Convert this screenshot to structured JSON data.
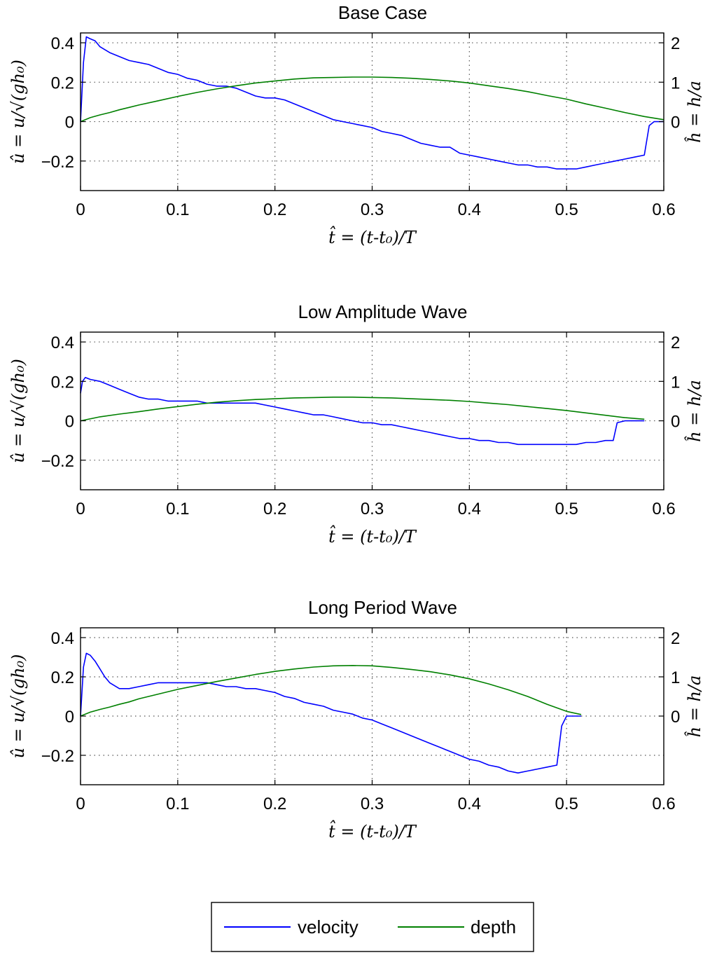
{
  "chart_data": [
    {
      "type": "line",
      "title": "Base Case",
      "xlabel": "t̂ = (t-t₀)/T",
      "ylabel": "û = u/√(gh₀)",
      "y2label": "ĥ = h/a",
      "xlim": [
        0,
        0.6
      ],
      "ylim": [
        -0.35,
        0.45
      ],
      "y2lim": [
        -1.75,
        2.25
      ],
      "xticks": [
        "0",
        "0.1",
        "0.2",
        "0.3",
        "0.4",
        "0.5",
        "0.6"
      ],
      "yticks": [
        "0.4",
        "0.2",
        "0",
        "−0.2"
      ],
      "y2ticks": [
        "2",
        "1",
        "0"
      ],
      "grid": true,
      "series": [
        {
          "name": "velocity",
          "axis": "left",
          "x": [
            0,
            0.003,
            0.006,
            0.01,
            0.015,
            0.02,
            0.03,
            0.04,
            0.05,
            0.06,
            0.07,
            0.08,
            0.09,
            0.1,
            0.11,
            0.12,
            0.13,
            0.14,
            0.15,
            0.16,
            0.17,
            0.18,
            0.19,
            0.2,
            0.21,
            0.22,
            0.23,
            0.24,
            0.25,
            0.26,
            0.27,
            0.28,
            0.29,
            0.3,
            0.31,
            0.32,
            0.33,
            0.34,
            0.35,
            0.36,
            0.37,
            0.38,
            0.39,
            0.4,
            0.41,
            0.42,
            0.43,
            0.44,
            0.45,
            0.46,
            0.47,
            0.48,
            0.49,
            0.5,
            0.51,
            0.52,
            0.53,
            0.54,
            0.55,
            0.56,
            0.57,
            0.58,
            0.585,
            0.59,
            0.6
          ],
          "y": [
            0,
            0.3,
            0.43,
            0.42,
            0.41,
            0.38,
            0.35,
            0.33,
            0.31,
            0.3,
            0.29,
            0.27,
            0.25,
            0.24,
            0.22,
            0.21,
            0.19,
            0.18,
            0.18,
            0.17,
            0.15,
            0.13,
            0.12,
            0.12,
            0.11,
            0.09,
            0.07,
            0.05,
            0.03,
            0.01,
            0.0,
            -0.01,
            -0.02,
            -0.03,
            -0.05,
            -0.06,
            -0.07,
            -0.09,
            -0.11,
            -0.12,
            -0.13,
            -0.13,
            -0.16,
            -0.17,
            -0.18,
            -0.19,
            -0.2,
            -0.21,
            -0.22,
            -0.22,
            -0.23,
            -0.23,
            -0.24,
            -0.24,
            -0.24,
            -0.23,
            -0.22,
            -0.21,
            -0.2,
            -0.19,
            -0.18,
            -0.17,
            -0.02,
            0,
            0
          ]
        },
        {
          "name": "depth",
          "axis": "right",
          "x": [
            0,
            0.01,
            0.02,
            0.03,
            0.04,
            0.05,
            0.06,
            0.08,
            0.1,
            0.12,
            0.14,
            0.16,
            0.18,
            0.2,
            0.22,
            0.24,
            0.26,
            0.28,
            0.3,
            0.32,
            0.34,
            0.36,
            0.38,
            0.4,
            0.42,
            0.44,
            0.46,
            0.48,
            0.5,
            0.52,
            0.54,
            0.56,
            0.58,
            0.6
          ],
          "y": [
            0,
            0.1,
            0.17,
            0.23,
            0.3,
            0.36,
            0.42,
            0.53,
            0.64,
            0.74,
            0.83,
            0.91,
            0.98,
            1.03,
            1.08,
            1.11,
            1.12,
            1.13,
            1.13,
            1.12,
            1.1,
            1.07,
            1.03,
            0.98,
            0.91,
            0.84,
            0.76,
            0.66,
            0.57,
            0.45,
            0.34,
            0.23,
            0.13,
            0.05
          ]
        }
      ]
    },
    {
      "type": "line",
      "title": "Low Amplitude Wave",
      "xlabel": "t̂ = (t-t₀)/T",
      "ylabel": "û = u/√(gh₀)",
      "y2label": "ĥ = h/a",
      "xlim": [
        0,
        0.6
      ],
      "ylim": [
        -0.35,
        0.45
      ],
      "y2lim": [
        -1.75,
        2.25
      ],
      "xticks": [
        "0",
        "0.1",
        "0.2",
        "0.3",
        "0.4",
        "0.5",
        "0.6"
      ],
      "yticks": [
        "0.4",
        "0.2",
        "0",
        "−0.2"
      ],
      "y2ticks": [
        "2",
        "1",
        "0"
      ],
      "grid": true,
      "series": [
        {
          "name": "velocity",
          "axis": "left",
          "x": [
            0,
            0.002,
            0.005,
            0.01,
            0.02,
            0.03,
            0.04,
            0.05,
            0.06,
            0.07,
            0.08,
            0.09,
            0.1,
            0.11,
            0.12,
            0.13,
            0.14,
            0.15,
            0.16,
            0.17,
            0.18,
            0.19,
            0.2,
            0.21,
            0.22,
            0.23,
            0.24,
            0.25,
            0.26,
            0.27,
            0.28,
            0.29,
            0.3,
            0.31,
            0.32,
            0.33,
            0.34,
            0.35,
            0.36,
            0.37,
            0.38,
            0.39,
            0.4,
            0.41,
            0.42,
            0.43,
            0.44,
            0.45,
            0.46,
            0.47,
            0.48,
            0.49,
            0.5,
            0.51,
            0.52,
            0.53,
            0.54,
            0.548,
            0.552,
            0.56,
            0.57,
            0.58
          ],
          "y": [
            0.14,
            0.2,
            0.22,
            0.21,
            0.2,
            0.18,
            0.16,
            0.14,
            0.12,
            0.11,
            0.11,
            0.1,
            0.1,
            0.1,
            0.1,
            0.09,
            0.09,
            0.09,
            0.09,
            0.09,
            0.09,
            0.08,
            0.07,
            0.06,
            0.05,
            0.04,
            0.03,
            0.03,
            0.02,
            0.01,
            0.0,
            -0.01,
            -0.01,
            -0.02,
            -0.02,
            -0.03,
            -0.04,
            -0.05,
            -0.06,
            -0.07,
            -0.08,
            -0.09,
            -0.09,
            -0.1,
            -0.1,
            -0.11,
            -0.11,
            -0.12,
            -0.12,
            -0.12,
            -0.12,
            -0.12,
            -0.12,
            -0.12,
            -0.11,
            -0.11,
            -0.1,
            -0.1,
            -0.01,
            0,
            0,
            0
          ]
        },
        {
          "name": "depth",
          "axis": "right",
          "x": [
            0,
            0.02,
            0.04,
            0.06,
            0.08,
            0.1,
            0.12,
            0.14,
            0.16,
            0.18,
            0.2,
            0.22,
            0.24,
            0.26,
            0.28,
            0.3,
            0.32,
            0.34,
            0.36,
            0.38,
            0.4,
            0.42,
            0.44,
            0.46,
            0.48,
            0.5,
            0.52,
            0.54,
            0.56,
            0.58
          ],
          "y": [
            0,
            0.1,
            0.17,
            0.23,
            0.3,
            0.36,
            0.42,
            0.47,
            0.51,
            0.54,
            0.56,
            0.58,
            0.59,
            0.6,
            0.6,
            0.59,
            0.58,
            0.56,
            0.54,
            0.52,
            0.49,
            0.45,
            0.41,
            0.36,
            0.31,
            0.26,
            0.2,
            0.14,
            0.08,
            0.04
          ]
        }
      ]
    },
    {
      "type": "line",
      "title": "Long Period Wave",
      "xlabel": "t̂ = (t-t₀)/T",
      "ylabel": "û = u/√(gh₀)",
      "y2label": "ĥ = h/a",
      "xlim": [
        0,
        0.6
      ],
      "ylim": [
        -0.35,
        0.45
      ],
      "y2lim": [
        -1.75,
        2.25
      ],
      "xticks": [
        "0",
        "0.1",
        "0.2",
        "0.3",
        "0.4",
        "0.5",
        "0.6"
      ],
      "yticks": [
        "0.4",
        "0.2",
        "0",
        "−0.2"
      ],
      "y2ticks": [
        "2",
        "1",
        "0"
      ],
      "grid": true,
      "series": [
        {
          "name": "velocity",
          "axis": "left",
          "x": [
            0,
            0.003,
            0.006,
            0.01,
            0.015,
            0.02,
            0.025,
            0.03,
            0.04,
            0.05,
            0.06,
            0.07,
            0.08,
            0.09,
            0.1,
            0.11,
            0.12,
            0.13,
            0.14,
            0.15,
            0.16,
            0.17,
            0.18,
            0.19,
            0.2,
            0.21,
            0.22,
            0.23,
            0.24,
            0.25,
            0.26,
            0.27,
            0.28,
            0.29,
            0.3,
            0.31,
            0.32,
            0.33,
            0.34,
            0.35,
            0.36,
            0.37,
            0.38,
            0.39,
            0.4,
            0.41,
            0.42,
            0.43,
            0.44,
            0.45,
            0.46,
            0.47,
            0.48,
            0.49,
            0.495,
            0.5,
            0.505,
            0.51,
            0.515
          ],
          "y": [
            0,
            0.25,
            0.32,
            0.31,
            0.28,
            0.24,
            0.2,
            0.17,
            0.14,
            0.14,
            0.15,
            0.16,
            0.17,
            0.17,
            0.17,
            0.17,
            0.17,
            0.17,
            0.16,
            0.15,
            0.15,
            0.14,
            0.14,
            0.13,
            0.12,
            0.1,
            0.09,
            0.07,
            0.06,
            0.05,
            0.03,
            0.02,
            0.01,
            -0.01,
            -0.02,
            -0.04,
            -0.06,
            -0.08,
            -0.1,
            -0.12,
            -0.14,
            -0.16,
            -0.18,
            -0.2,
            -0.22,
            -0.23,
            -0.25,
            -0.26,
            -0.28,
            -0.29,
            -0.28,
            -0.27,
            -0.26,
            -0.25,
            -0.05,
            0,
            0,
            0,
            0
          ]
        },
        {
          "name": "depth",
          "axis": "right",
          "x": [
            0,
            0.01,
            0.02,
            0.03,
            0.04,
            0.05,
            0.06,
            0.08,
            0.1,
            0.12,
            0.14,
            0.16,
            0.18,
            0.2,
            0.22,
            0.24,
            0.26,
            0.28,
            0.3,
            0.32,
            0.34,
            0.36,
            0.38,
            0.4,
            0.42,
            0.44,
            0.46,
            0.48,
            0.5,
            0.515
          ],
          "y": [
            0,
            0.1,
            0.17,
            0.23,
            0.3,
            0.36,
            0.44,
            0.56,
            0.68,
            0.78,
            0.88,
            0.97,
            1.06,
            1.14,
            1.2,
            1.25,
            1.28,
            1.29,
            1.28,
            1.24,
            1.19,
            1.13,
            1.05,
            0.95,
            0.82,
            0.67,
            0.5,
            0.3,
            0.12,
            0.04
          ]
        }
      ]
    }
  ],
  "legend": {
    "placement": "bottom-center",
    "items": [
      {
        "label": "velocity",
        "color": "#0000ff"
      },
      {
        "label": "depth",
        "color": "#008000"
      }
    ]
  },
  "colors": {
    "velocity": "#0000ff",
    "depth": "#008000",
    "grid": "#555555",
    "axes": "#000000"
  }
}
